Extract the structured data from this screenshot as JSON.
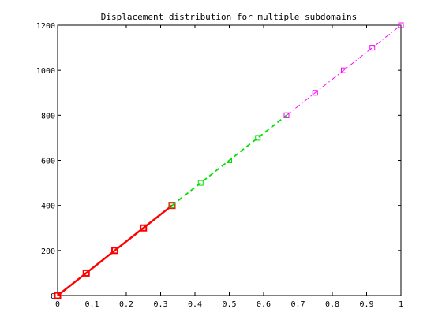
{
  "chart_data": {
    "type": "line",
    "title": "Displacement distribution for multiple subdomains",
    "xlabel": "",
    "ylabel": "",
    "xlim": [
      0,
      1
    ],
    "ylim": [
      0,
      1200
    ],
    "xticks": [
      0,
      0.1,
      0.2,
      0.3,
      0.4,
      0.5,
      0.6,
      0.7,
      0.8,
      0.9,
      1
    ],
    "xtick_labels": [
      "0",
      "0.1",
      "0.2",
      "0.3",
      "0.4",
      "0.5",
      "0.6",
      "0.7",
      "0.8",
      "0.9",
      "1"
    ],
    "yticks": [
      0,
      200,
      400,
      600,
      800,
      1000,
      1200
    ],
    "ytick_labels": [
      "0",
      "200",
      "400",
      "600",
      "800",
      "1000",
      "1200"
    ],
    "grid": false,
    "legend": "none",
    "series": [
      {
        "color": "#ff0000",
        "line_style": "solid",
        "line_weight": "thick",
        "marker": "square",
        "x": [
          0,
          0.0833,
          0.1667,
          0.25,
          0.3333
        ],
        "y": [
          0,
          100,
          200,
          300,
          400
        ]
      },
      {
        "color": "#00e000",
        "line_style": "dashed",
        "line_weight": "medium",
        "marker": "square",
        "x": [
          0.3333,
          0.4167,
          0.5,
          0.5833,
          0.6667
        ],
        "y": [
          400,
          500,
          600,
          700,
          800
        ]
      },
      {
        "color": "#ff00ff",
        "line_style": "dash-dot",
        "line_weight": "thin",
        "marker": "square",
        "x": [
          0.6667,
          0.75,
          0.8333,
          0.9167,
          1.0
        ],
        "y": [
          800,
          900,
          1000,
          1100,
          1200
        ]
      }
    ]
  }
}
